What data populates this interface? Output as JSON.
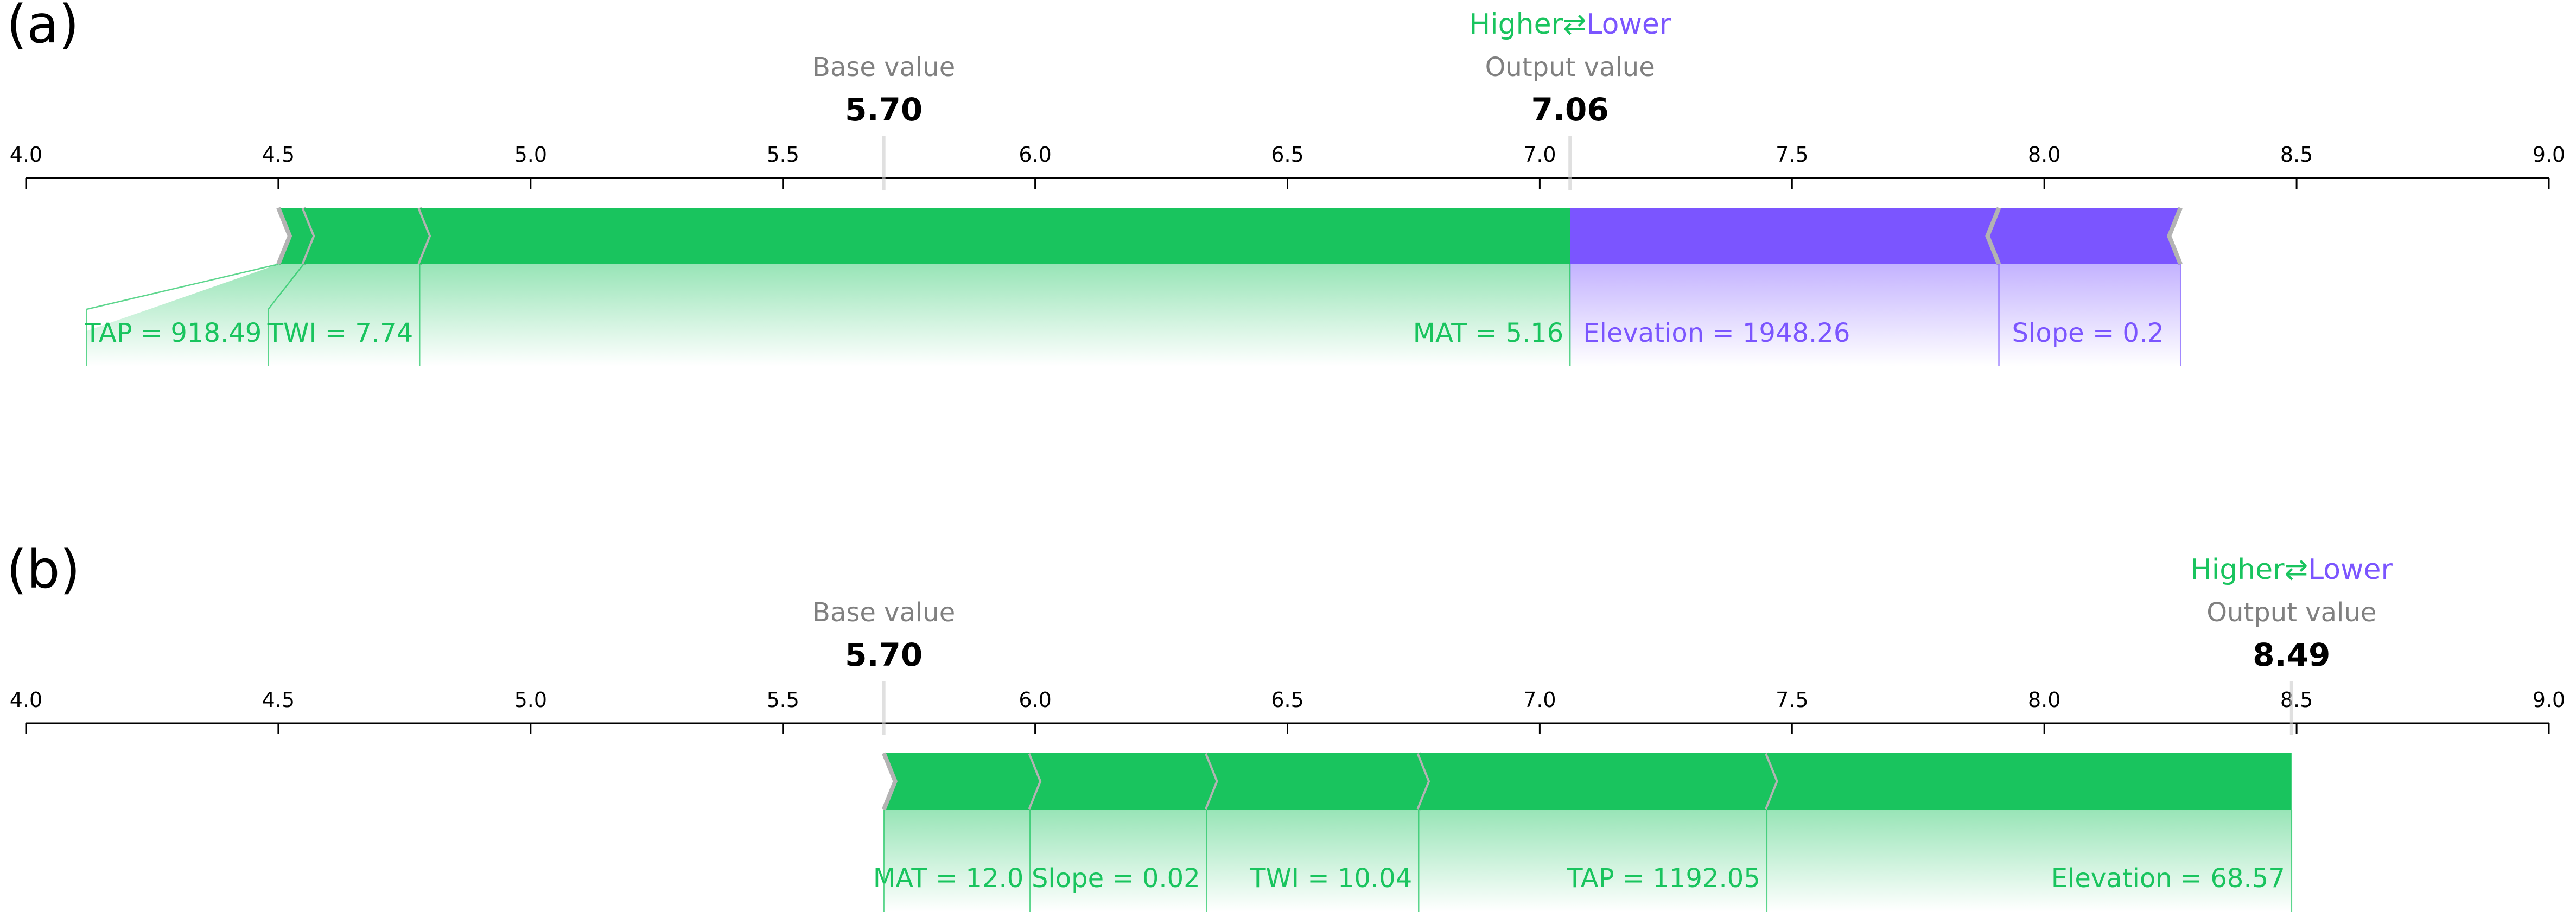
{
  "chart_data": [
    {
      "type": "force",
      "panel_label": "(a)",
      "xlim": [
        4.0,
        9.0
      ],
      "ticks": [
        "4.0",
        "4.5",
        "5.0",
        "5.5",
        "6.0",
        "6.5",
        "7.0",
        "7.5",
        "8.0",
        "8.5",
        "9.0"
      ],
      "tick_values": [
        4.0,
        4.5,
        5.0,
        5.5,
        6.0,
        6.5,
        7.0,
        7.5,
        8.0,
        8.5,
        9.0
      ],
      "legend": {
        "higher": "Higher",
        "arrow": "⇄",
        "lower": "Lower"
      },
      "base_label": "Base value",
      "base_value": 5.7,
      "base_value_text": "5.70",
      "output_label": "Output value",
      "output_value": 7.06,
      "output_value_text": "7.06",
      "positive": [
        {
          "start": 4.5,
          "end": 4.55,
          "label": "TAP = 918.49",
          "label_at": 4.12
        },
        {
          "start": 4.55,
          "end": 4.78,
          "label": "TWI = 7.74",
          "label_at": 4.48
        },
        {
          "start": 4.78,
          "end": 7.06,
          "label": "MAT = 5.16",
          "label_at": 4.78
        }
      ],
      "negative": [
        {
          "start": 7.06,
          "end": 7.91,
          "label": "Elevation = 1948.26"
        },
        {
          "start": 7.91,
          "end": 8.27,
          "label": "Slope = 0.2"
        }
      ]
    },
    {
      "type": "force",
      "panel_label": "(b)",
      "xlim": [
        4.0,
        9.0
      ],
      "ticks": [
        "4.0",
        "4.5",
        "5.0",
        "5.5",
        "6.0",
        "6.5",
        "7.0",
        "7.5",
        "8.0",
        "8.5",
        "9.0"
      ],
      "tick_values": [
        4.0,
        4.5,
        5.0,
        5.5,
        6.0,
        6.5,
        7.0,
        7.5,
        8.0,
        8.5,
        9.0
      ],
      "legend": {
        "higher": "Higher",
        "arrow": "⇄",
        "lower": "Lower"
      },
      "base_label": "Base value",
      "base_value": 5.7,
      "base_value_text": "5.70",
      "output_label": "Output value",
      "output_value": 8.49,
      "output_value_text": "8.49",
      "positive": [
        {
          "start": 5.7,
          "end": 5.99,
          "label": "MAT = 12.0"
        },
        {
          "start": 5.99,
          "end": 6.34,
          "label": "Slope = 0.02"
        },
        {
          "start": 6.34,
          "end": 6.76,
          "label": "TWI = 10.04"
        },
        {
          "start": 6.76,
          "end": 7.45,
          "label": "TAP = 1192.05"
        },
        {
          "start": 7.45,
          "end": 8.49,
          "label": "Elevation = 68.57"
        }
      ],
      "negative": []
    }
  ],
  "colors": {
    "positive": "#19c45e",
    "negative": "#7b55ff",
    "separator": "#b3b3b3",
    "axis": "#000000",
    "muted_text": "#808080",
    "value_text": "#000000"
  }
}
